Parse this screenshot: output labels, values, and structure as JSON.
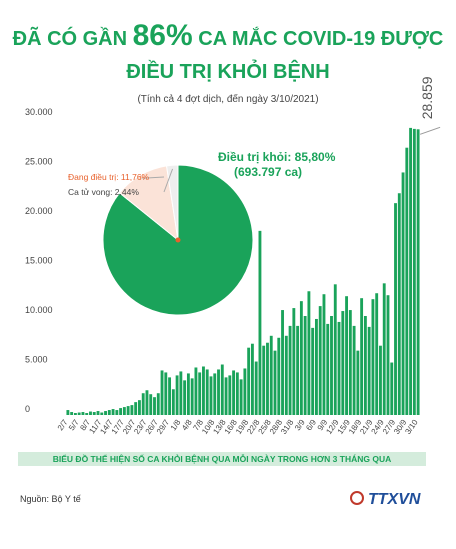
{
  "header": {
    "title_parts": [
      "ĐÃ CÓ GẦN ",
      "86%",
      " CA MẮC COVID-19 ĐƯỢC"
    ],
    "title_line2": "ĐIỀU TRỊ KHỎI BỆNH",
    "subtitle": "(Tính cả 4 đợt dịch, đến ngày 3/10/2021)"
  },
  "chart_data": [
    {
      "type": "bar",
      "color": "#1aa35a",
      "grid": false,
      "categories": [
        "2/7",
        null,
        null,
        "5/7",
        null,
        null,
        "8/7",
        null,
        null,
        "11/7",
        null,
        null,
        "14/7",
        null,
        null,
        "17/7",
        null,
        null,
        "20/7",
        null,
        null,
        "23/7",
        null,
        null,
        "26/7",
        null,
        null,
        "29/7",
        null,
        null,
        "1/8",
        null,
        null,
        "4/8",
        null,
        null,
        "7/8",
        null,
        null,
        "10/8",
        null,
        null,
        "13/8",
        null,
        null,
        "16/8",
        null,
        null,
        "19/8",
        null,
        null,
        "22/8",
        null,
        null,
        "25/8",
        null,
        null,
        "28/8",
        null,
        null,
        "31/8",
        null,
        null,
        "3/9",
        null,
        null,
        "6/9",
        null,
        null,
        "9/9",
        null,
        null,
        "12/9",
        null,
        null,
        "15/9",
        null,
        null,
        "18/9",
        null,
        null,
        "21/9",
        null,
        null,
        "24/9",
        null,
        null,
        "27/9",
        null,
        null,
        "30/9",
        null,
        null,
        "3/10"
      ],
      "values": [
        500,
        300,
        200,
        250,
        300,
        200,
        350,
        300,
        400,
        250,
        400,
        500,
        600,
        500,
        700,
        800,
        900,
        1000,
        1300,
        1500,
        2200,
        2500,
        2100,
        1800,
        2200,
        4500,
        4300,
        3800,
        2600,
        4000,
        4400,
        3500,
        4200,
        3700,
        4800,
        4300,
        4900,
        4600,
        3900,
        4200,
        4600,
        5100,
        3800,
        4000,
        4500,
        4300,
        3600,
        4700,
        6800,
        7200,
        5400,
        18600,
        7000,
        7300,
        8000,
        6500,
        7800,
        10600,
        8000,
        9000,
        10800,
        9000,
        11500,
        10000,
        12500,
        8800,
        9700,
        11000,
        12200,
        9200,
        10000,
        13200,
        9400,
        10500,
        12000,
        10600,
        9000,
        6500,
        11800,
        10000,
        8900,
        11700,
        12300,
        7000,
        13300,
        12100,
        5300,
        21400,
        22400,
        24500,
        27000,
        29000,
        28900,
        28859
      ],
      "value_labels": [
        null,
        null,
        null,
        null,
        null,
        null,
        null,
        null,
        null,
        null,
        null,
        null,
        null,
        null,
        null,
        null,
        null,
        null,
        null,
        null,
        null,
        null,
        null,
        null,
        null,
        null,
        null,
        null,
        null,
        null,
        null,
        null,
        null,
        null,
        null,
        null,
        null,
        null,
        null,
        null,
        null,
        null,
        null,
        null,
        null,
        null,
        null,
        null,
        null,
        null,
        null,
        null,
        null,
        null,
        null,
        null,
        null,
        null,
        null,
        null,
        null,
        null,
        null,
        null,
        null,
        null,
        null,
        null,
        null,
        null,
        null,
        null,
        null,
        null,
        null,
        null,
        null,
        null,
        null,
        null,
        null,
        null,
        null,
        null,
        null,
        null,
        null,
        null,
        null,
        null,
        null,
        null,
        null,
        "28.859"
      ],
      "ylim": [
        0,
        30000
      ],
      "yticks": [
        0,
        {
          "value": 5000,
          "label": "5.000"
        },
        {
          "value": 10000,
          "label": "10.000"
        },
        {
          "value": 15000,
          "label": "15.000"
        },
        {
          "value": 20000,
          "label": "20.000"
        },
        {
          "value": 25000,
          "label": "25.000"
        },
        {
          "value": 30000,
          "label": "30.000"
        }
      ]
    },
    {
      "type": "pie",
      "labels": [
        "Điều trị khỏi: 85,80%",
        "Đang điều trị: 11,76%",
        "Ca tử vong: 2,44%"
      ],
      "values": [
        85.8,
        11.76,
        2.44
      ],
      "colors": [
        "#1aa35a",
        "#fbe3d8",
        "#eeeeee"
      ],
      "annotation": "(693.797 ca)"
    }
  ],
  "footer": {
    "caption": "BIỂU ĐỒ THỂ HIỆN SỐ CA KHỎI BỆNH QUA MỖI NGÀY TRONG HƠN 3 THÁNG QUA",
    "source": "Nguồn: Bộ Y tế",
    "logo": "TTXVN"
  }
}
